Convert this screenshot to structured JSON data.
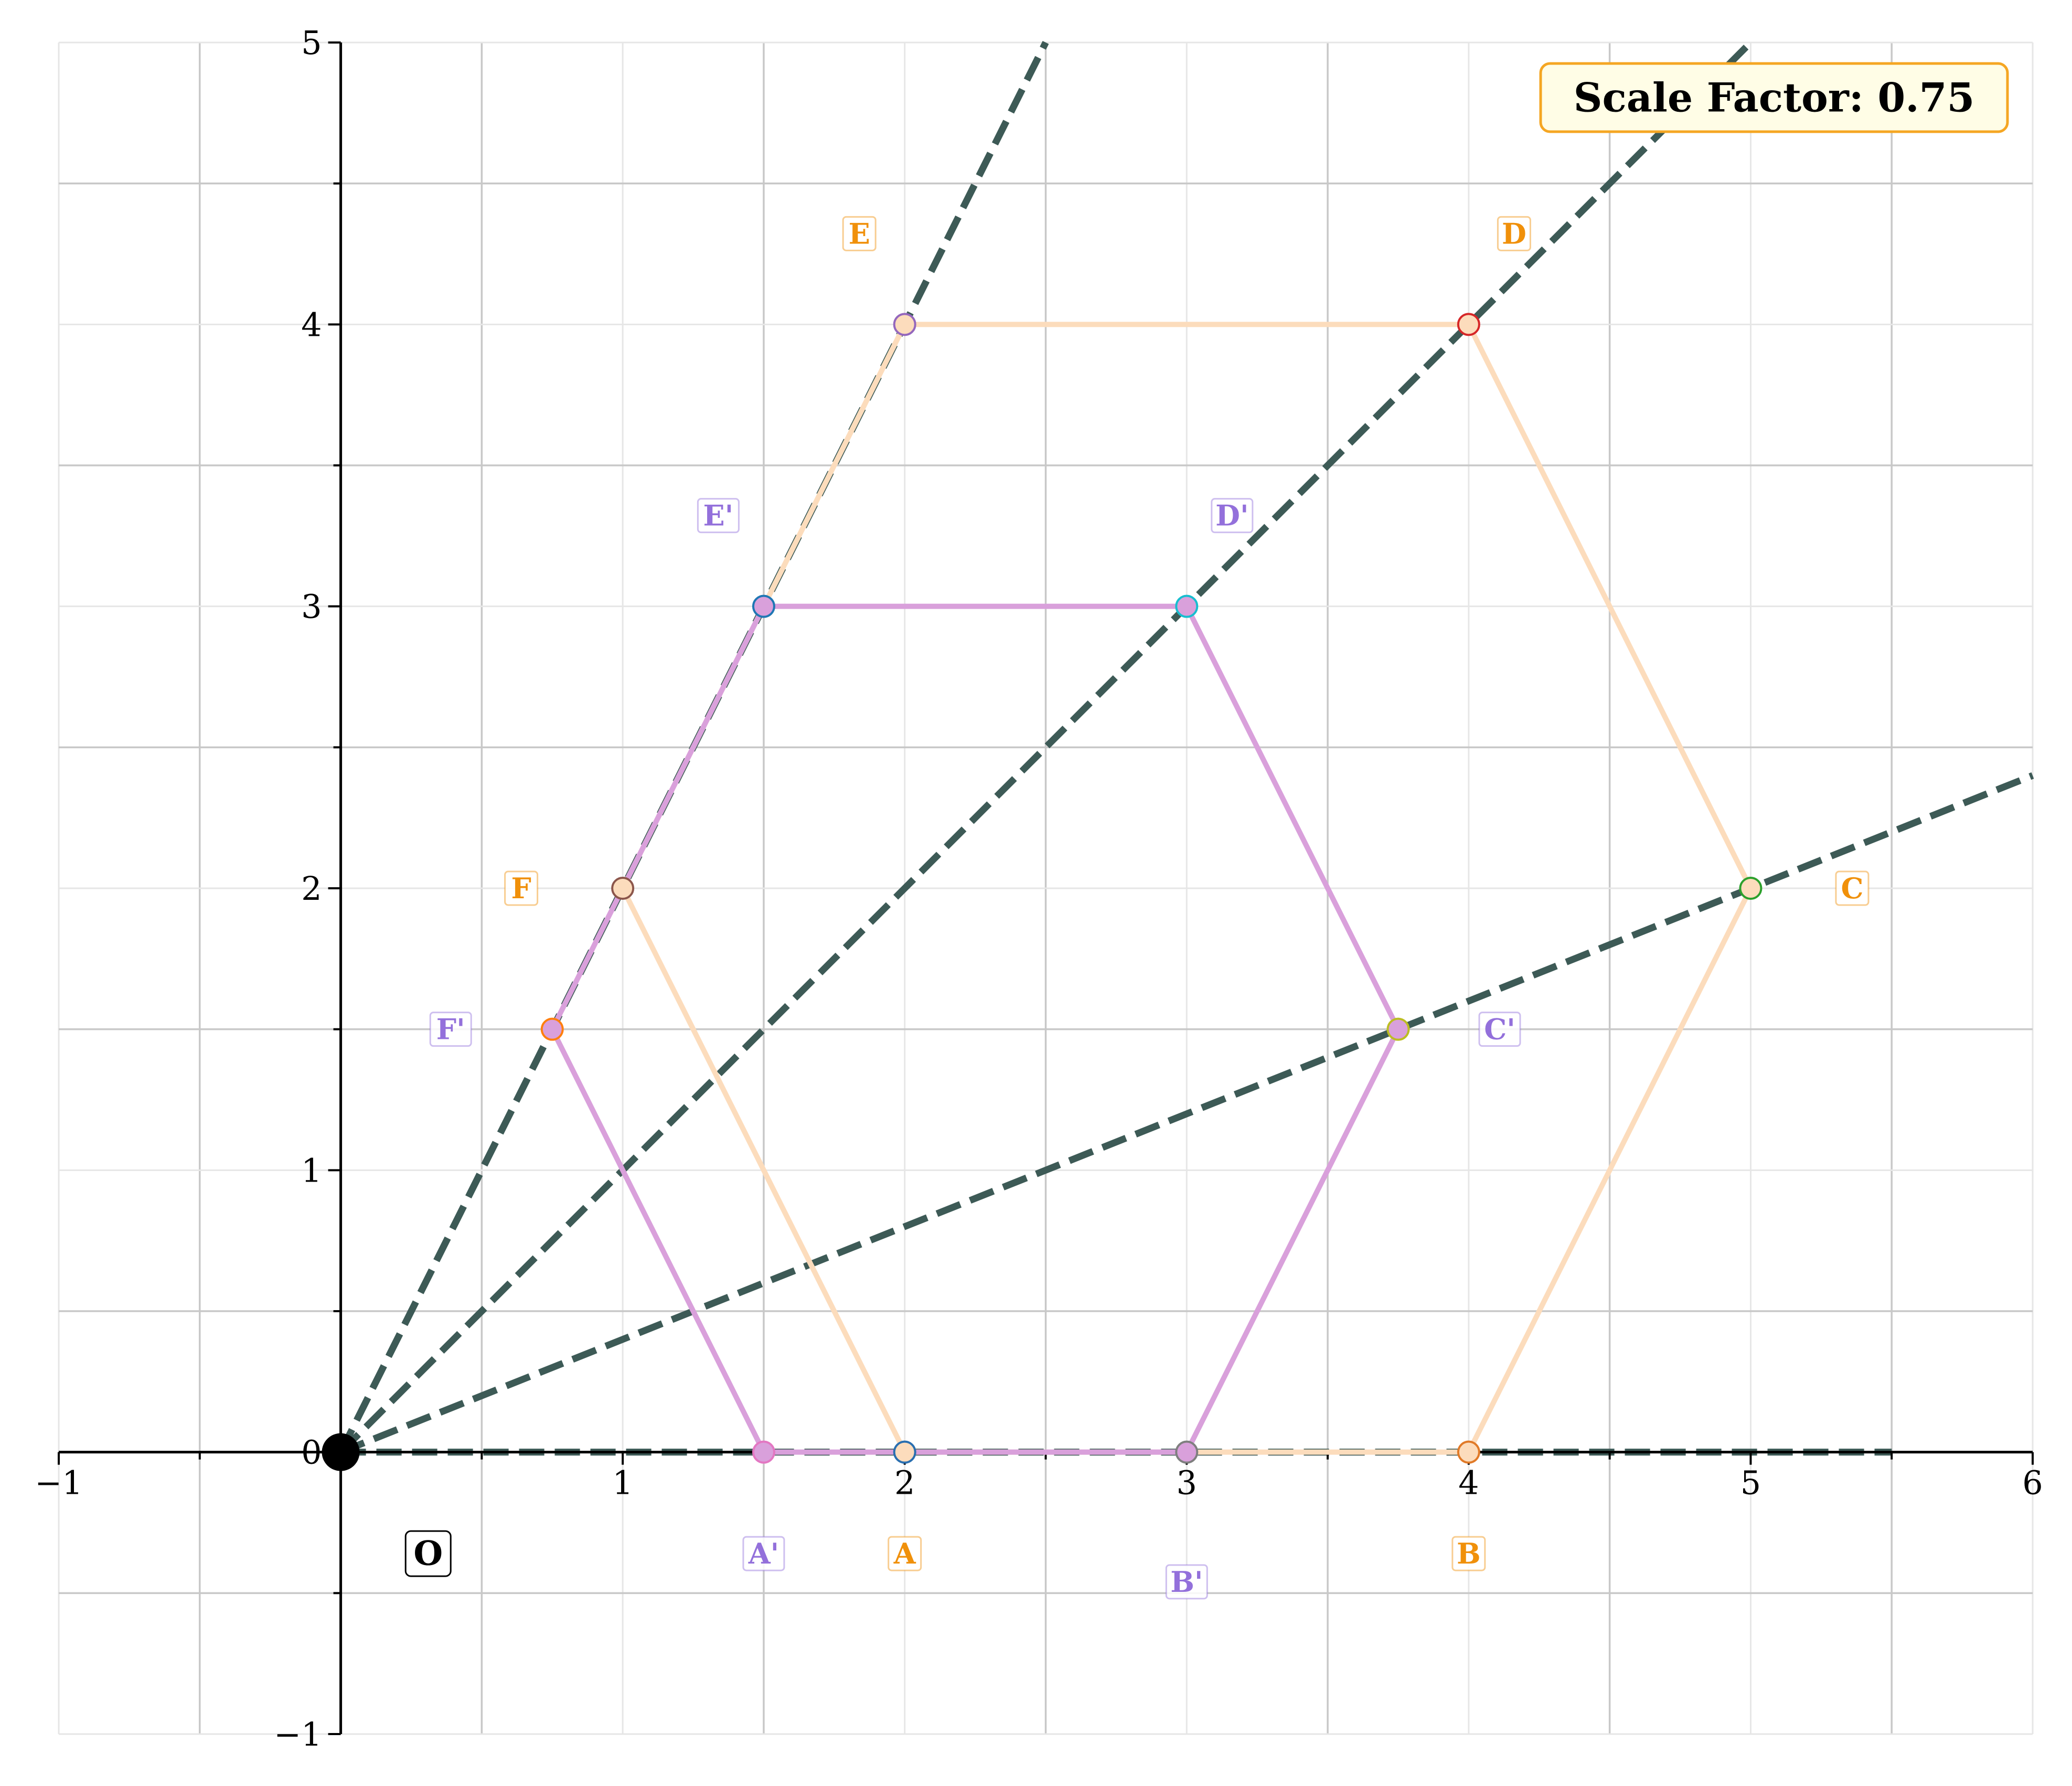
{
  "chart_data": {
    "type": "scatter",
    "title": "",
    "xlabel": "",
    "ylabel": "",
    "xlim": [
      -1,
      6
    ],
    "ylim": [
      -1,
      5
    ],
    "grid": true,
    "xticks": [
      -1,
      0,
      1,
      2,
      3,
      4,
      5,
      6
    ],
    "yticks": [
      -1,
      0,
      1,
      2,
      3,
      4,
      5
    ],
    "xtick_labels": [
      "−1",
      "0",
      "1",
      "2",
      "3",
      "4",
      "5",
      "6"
    ],
    "ytick_labels": [
      "−1",
      "0",
      "1",
      "2",
      "3",
      "4",
      "5"
    ],
    "scale_factor_label": "Scale Factor: 0.75",
    "center": {
      "label": "O",
      "x": 0,
      "y": 0
    },
    "original": {
      "color": "#fcdcbc",
      "label_color": "#f0900a",
      "vertices": [
        {
          "label": "A",
          "x": 2,
          "y": 0,
          "marker_color": "#2a6fb0"
        },
        {
          "label": "B",
          "x": 4,
          "y": 0,
          "marker_color": "#e07a28"
        },
        {
          "label": "C",
          "x": 5,
          "y": 2,
          "marker_color": "#2ca02c"
        },
        {
          "label": "D",
          "x": 4,
          "y": 4,
          "marker_color": "#d62728"
        },
        {
          "label": "E",
          "x": 2,
          "y": 4,
          "marker_color": "#9467bd"
        },
        {
          "label": "F",
          "x": 1,
          "y": 2,
          "marker_color": "#8c564b"
        }
      ]
    },
    "image": {
      "color": "#d9a0db",
      "label_color": "#9370db",
      "vertices": [
        {
          "label": "A'",
          "x": 1.5,
          "y": 0,
          "marker_color": "#e377c2"
        },
        {
          "label": "B'",
          "x": 3,
          "y": 0,
          "marker_color": "#7f7f7f"
        },
        {
          "label": "C'",
          "x": 3.75,
          "y": 1.5,
          "marker_color": "#bcbd22"
        },
        {
          "label": "D'",
          "x": 3,
          "y": 3,
          "marker_color": "#17becf"
        },
        {
          "label": "E'",
          "x": 1.5,
          "y": 3,
          "marker_color": "#1f77b4"
        },
        {
          "label": "F'",
          "x": 0.75,
          "y": 1.5,
          "marker_color": "#ff7f0e"
        }
      ]
    },
    "rays_color": "#3d5a56"
  }
}
